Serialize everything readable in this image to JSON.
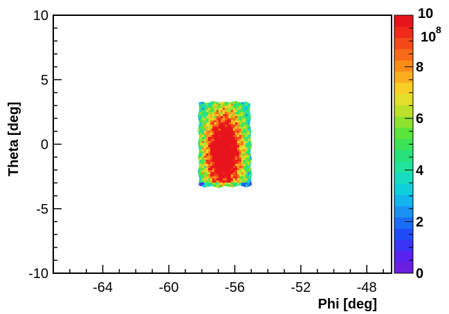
{
  "chart_data": {
    "type": "heatmap",
    "title": "",
    "xlabel": "Phi [deg]",
    "ylabel": "Theta [deg]",
    "xlim": [
      -67,
      -46.5
    ],
    "ylim": [
      -10,
      10
    ],
    "xticks": [
      {
        "value": -64,
        "label": "-64"
      },
      {
        "value": -60,
        "label": "-60"
      },
      {
        "value": -56,
        "label": "-56"
      },
      {
        "value": -52,
        "label": "-52"
      },
      {
        "value": -48,
        "label": "-48"
      }
    ],
    "yticks": [
      {
        "value": -10,
        "label": "-10"
      },
      {
        "value": -5,
        "label": "-5"
      },
      {
        "value": 0,
        "label": "0"
      },
      {
        "value": 5,
        "label": "5"
      },
      {
        "value": 10,
        "label": "10"
      }
    ],
    "colorbar": {
      "zlim": [
        0,
        10
      ],
      "scale_label": "10",
      "scale_exponent": "8",
      "ticks": [
        {
          "value": 0,
          "label": "0"
        },
        {
          "value": 2,
          "label": "2"
        },
        {
          "value": 4,
          "label": "4"
        },
        {
          "value": 6,
          "label": "6"
        },
        {
          "value": 8,
          "label": "8"
        },
        {
          "value": 10,
          "label": "10"
        }
      ],
      "palette": [
        "#6a1fe0",
        "#5a22ee",
        "#3a34f5",
        "#1f4cf7",
        "#1a6ef5",
        "#1a92f2",
        "#14b4ec",
        "#10cfdc",
        "#18dcc0",
        "#22e39c",
        "#27e27a",
        "#3be357",
        "#5ae43c",
        "#8ee22e",
        "#bde02a",
        "#e1de2c",
        "#f7cf26",
        "#fbad20",
        "#fb8c18",
        "#f76a18",
        "#f24a1b",
        "#f02a1a",
        "#e8141c"
      ]
    },
    "region": {
      "x_range": [
        -58.5,
        -55.2
      ],
      "y_range": [
        -3.5,
        3.3
      ],
      "peak_value": 10,
      "shape": "rectangular band, highest (red) values concentrated along the central column around phi -57 to -56, theta -2 to 2"
    }
  }
}
